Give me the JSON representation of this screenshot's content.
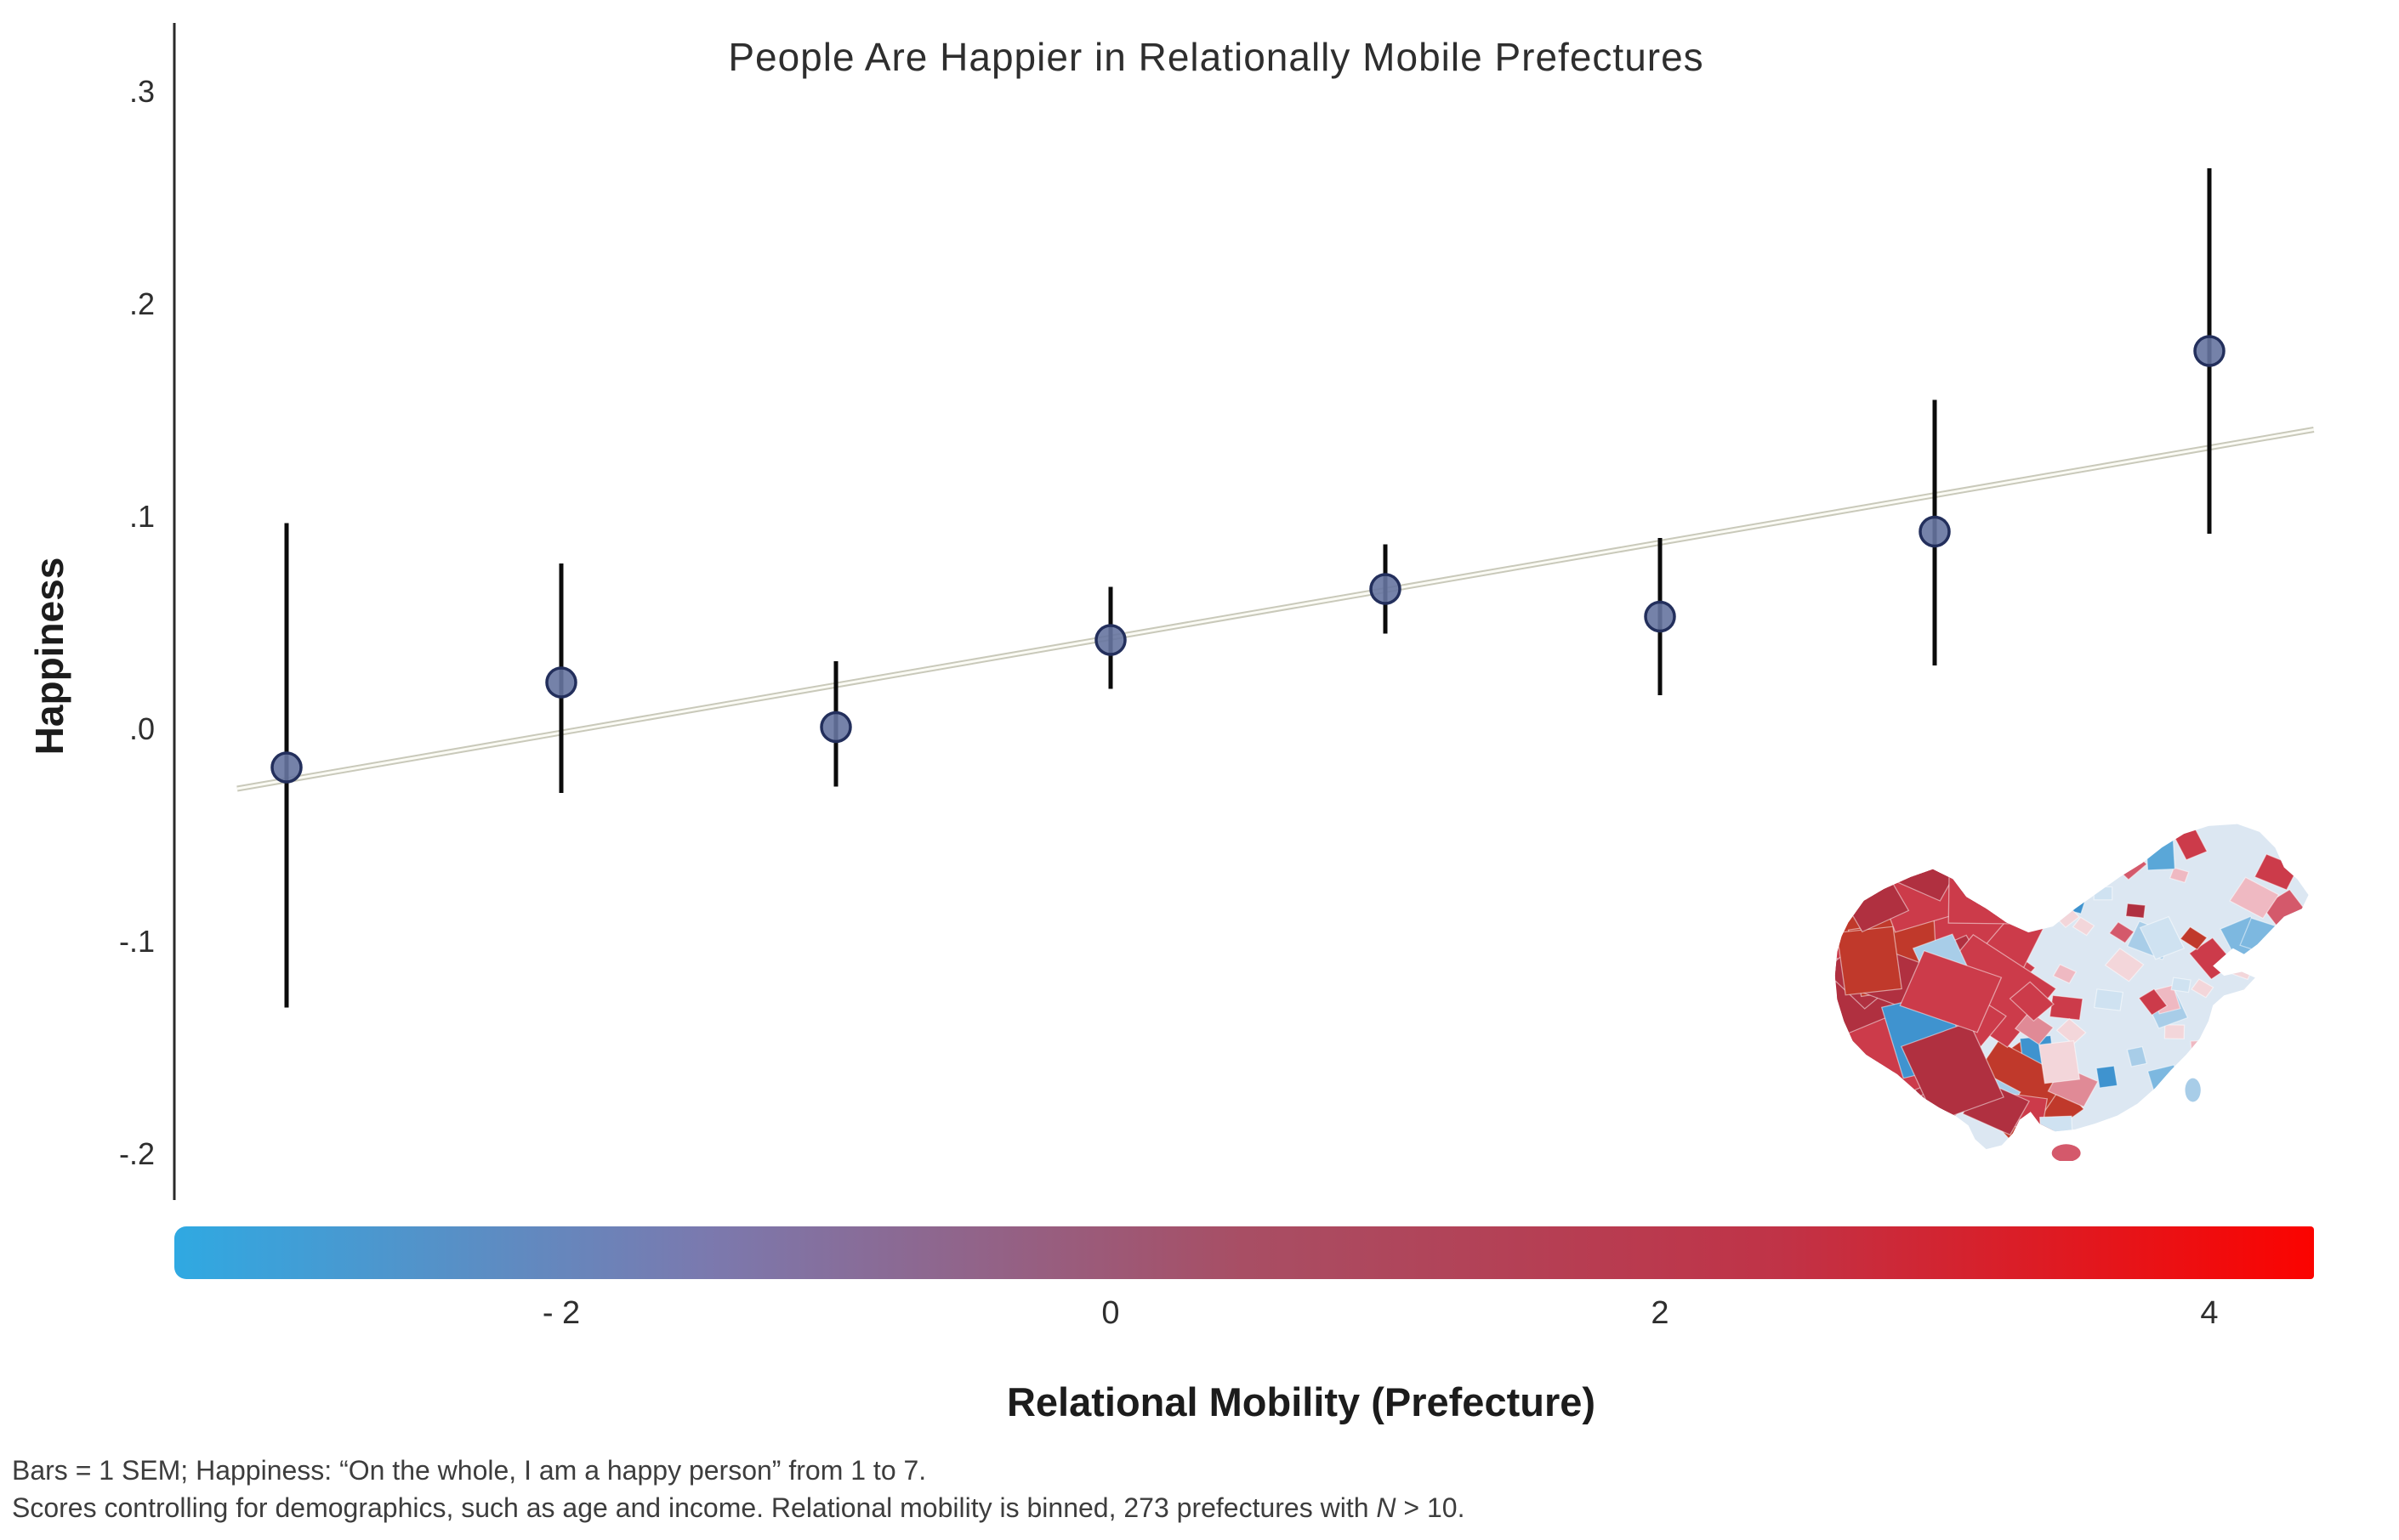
{
  "background": "#ffffff",
  "header": {
    "title": "People Are Happier in Relationally Mobile Prefectures"
  },
  "axes": {
    "y_label": "Happiness",
    "x_label": "Relational Mobility (Prefecture)"
  },
  "footnotes": {
    "line1": "Bars = 1 SEM; Happiness: “On the whole, I am a happy person” from 1 to 7.",
    "line2_pre": "Scores controlling for demographics, such as age and income. Relational mobility is binned, 273 prefectures with ",
    "line2_italic": "N",
    "line2_post": " > 10."
  },
  "chart_data": {
    "type": "scatter",
    "title": "People Are Happier in Relationally Mobile Prefectures",
    "xlabel": "Relational Mobility (Prefecture)",
    "ylabel": "Happiness",
    "x": [
      -3,
      -2,
      -1,
      0,
      1,
      2,
      3,
      4
    ],
    "y": [
      -0.018,
      0.022,
      0.001,
      0.042,
      0.066,
      0.053,
      0.093,
      0.178
    ],
    "sem_low": [
      -0.131,
      -0.03,
      -0.027,
      0.019,
      0.045,
      0.016,
      0.03,
      0.092
    ],
    "sem_high": [
      0.097,
      0.078,
      0.032,
      0.067,
      0.087,
      0.09,
      0.155,
      0.264
    ],
    "fit_line": {
      "x": [
        -3.18,
        4.38
      ],
      "y": [
        -0.028,
        0.141
      ]
    },
    "xlim": [
      -3.45,
      4.45
    ],
    "ylim": [
      -0.27,
      0.33
    ],
    "xticks": [
      -2,
      0,
      2,
      4
    ],
    "xtick_labels": [
      "- 2",
      "0",
      "2",
      "4"
    ],
    "yticks": [
      0.3,
      0.2,
      0.1,
      0.0,
      -0.1,
      -0.2
    ],
    "ytick_labels": [
      ".3",
      ".2",
      ".1",
      ".0",
      "-.1",
      "-.2"
    ],
    "grid": false,
    "legend": false,
    "colors": {
      "point_fill": "#6674a0",
      "point_stroke": "#232f5c",
      "error_bar": "#0b0b0b",
      "fit_line_outer": "#c9c9ba",
      "fit_line_inner": "#fbfbf5",
      "axis_line": "#2a2a2a",
      "colorbar_gradient": [
        "#2fa9e2",
        "#7b79ae",
        "#a84e64",
        "#c03347",
        "#fb0300"
      ]
    }
  },
  "map": {
    "palette_red": [
      "#b03040",
      "#c0392b",
      "#cc3b4a",
      "#d4596b",
      "#e08a96",
      "#efb9c2",
      "#f3d6da"
    ],
    "palette_blue": [
      "#3f93cf",
      "#5aa7d8",
      "#7db8e0",
      "#a8cde8",
      "#cfe2f1"
    ],
    "base_fill": "#dce7f2"
  }
}
